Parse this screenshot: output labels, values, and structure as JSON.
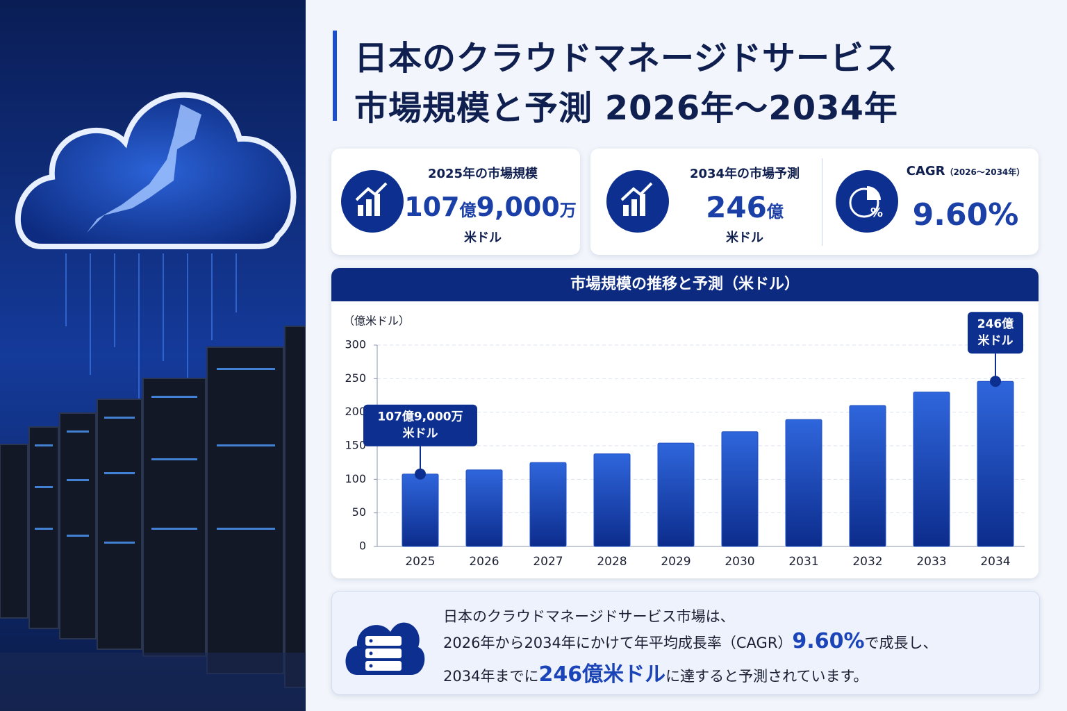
{
  "header": {
    "title_lines": [
      "日本のクラウドマネージドサービス",
      "市場規模と予測 2026年～2034年"
    ]
  },
  "kpis": {
    "market_2025": {
      "label": "2025年の市場規模",
      "parts": [
        "107",
        "億",
        "9,000",
        "万"
      ],
      "unit": "米ドル"
    },
    "market_2034": {
      "label": "2034年の市場予測",
      "parts": [
        "246",
        "億"
      ],
      "unit": "米ドル"
    },
    "cagr": {
      "label": "CAGR",
      "sublabel": "（2026～2034年）",
      "value": "9.60%"
    }
  },
  "chart_data": {
    "type": "bar",
    "title": "市場規模の推移と予測（米ドル）",
    "ylabel": "（億米ドル）",
    "categories": [
      "2025",
      "2026",
      "2027",
      "2028",
      "2029",
      "2030",
      "2031",
      "2032",
      "2033",
      "2034"
    ],
    "values": [
      107.9,
      114,
      125,
      138,
      154,
      171,
      189,
      210,
      230,
      246
    ],
    "value_labels": [
      "107億9,000万\n米ドル",
      null,
      null,
      null,
      null,
      null,
      null,
      null,
      null,
      "246億\n米ドル"
    ],
    "color": "#1f4fc0",
    "ylim": [
      0,
      300
    ],
    "yticks": [
      0,
      50,
      100,
      150,
      200,
      250,
      300
    ],
    "grid": true
  },
  "summary": {
    "line1": "日本のクラウドマネージドサービス市場は、",
    "line2": [
      "2026年から2034年にかけて年平均成長率（CAGR）",
      "9.60%",
      "で成長し、"
    ],
    "line3": [
      "2034年までに",
      "246億米ドル",
      "に達すると予測されています。"
    ]
  }
}
